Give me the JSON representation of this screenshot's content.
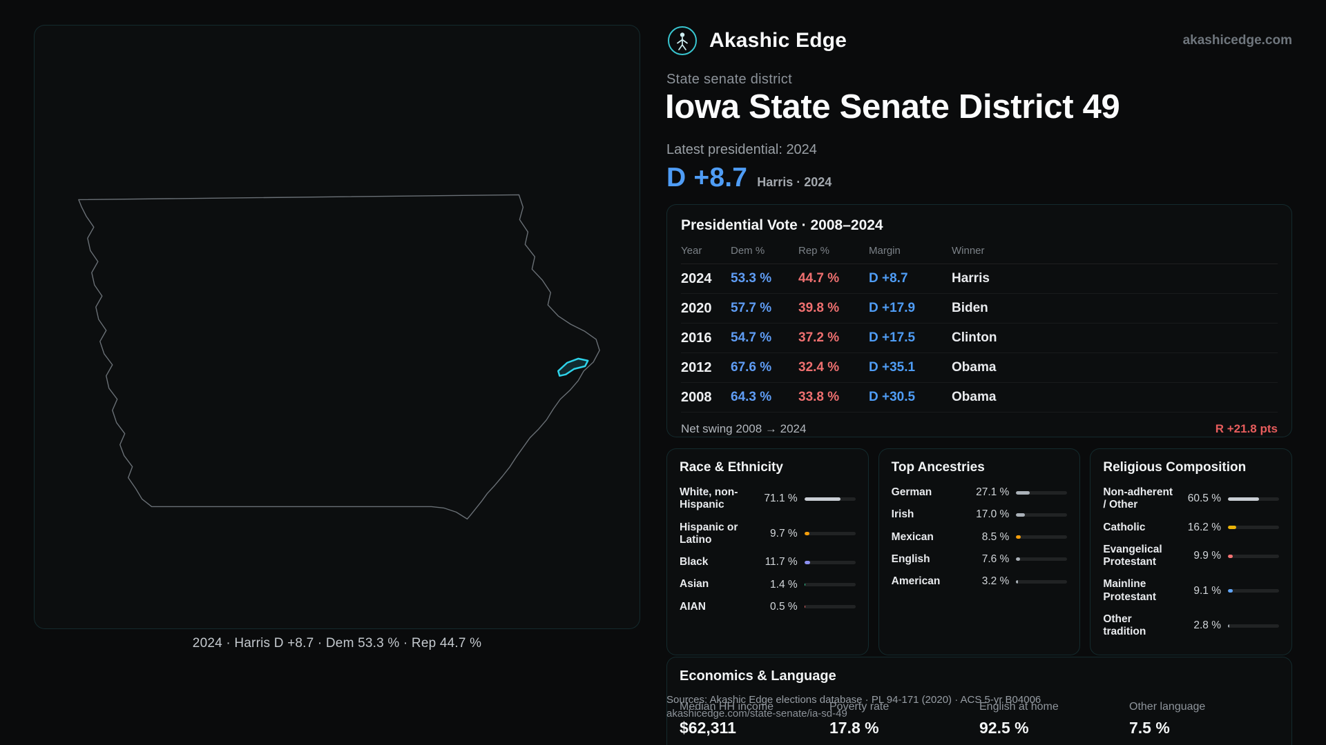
{
  "colors": {
    "dem_blue": "#4f9df6",
    "rep_red": "#ef7070",
    "swing_red": "#e85d5d",
    "accent_teal": "#35c9d6",
    "map_highlight": "#2ed3ea"
  },
  "brand": {
    "name": "Akashic Edge",
    "domain": "akashicedge.com",
    "logo_icon": "akashic-edge-emblem"
  },
  "map": {
    "region": "Iowa",
    "highlight": "District 49",
    "caption": "2024 · Harris D +8.7 · Dem 53.3 % · Rep 44.7 %"
  },
  "hero": {
    "kicker": "State senate district",
    "title": "Iowa State Senate District 49",
    "latest": "Latest presidential: 2024",
    "margin": "D +8.7",
    "margin_note": "Harris · 2024"
  },
  "presidential": {
    "title": "Presidential Vote · 2008–2024",
    "columns": [
      "Year",
      "Dem %",
      "Rep %",
      "Margin",
      "Winner"
    ],
    "rows": [
      {
        "year": "2024",
        "dem": "53.3 %",
        "rep": "44.7 %",
        "margin": "D +8.7",
        "winner": "Harris"
      },
      {
        "year": "2020",
        "dem": "57.7 %",
        "rep": "39.8 %",
        "margin": "D +17.9",
        "winner": "Biden"
      },
      {
        "year": "2016",
        "dem": "54.7 %",
        "rep": "37.2 %",
        "margin": "D +17.5",
        "winner": "Clinton"
      },
      {
        "year": "2012",
        "dem": "67.6 %",
        "rep": "32.4 %",
        "margin": "D +35.1",
        "winner": "Obama"
      },
      {
        "year": "2008",
        "dem": "64.3 %",
        "rep": "33.8 %",
        "margin": "D +30.5",
        "winner": "Obama"
      }
    ],
    "net_swing_label": "Net swing 2008 → 2024",
    "net_swing_value": "R +21.8 pts"
  },
  "race": {
    "title": "Race & Ethnicity",
    "rows": [
      {
        "label": "White, non-Hispanic",
        "value": "71.1 %",
        "pct": 71.1,
        "color": "#c9ced4"
      },
      {
        "label": "Hispanic or Latino",
        "value": "9.7 %",
        "pct": 9.7,
        "color": "#f59e0b"
      },
      {
        "label": "Black",
        "value": "11.7 %",
        "pct": 11.7,
        "color": "#8b8ff0"
      },
      {
        "label": "Asian",
        "value": "1.4 %",
        "pct": 1.4,
        "color": "#34d399"
      },
      {
        "label": "AIAN",
        "value": "0.5 %",
        "pct": 0.5,
        "color": "#ef6a6a"
      }
    ]
  },
  "ancestries": {
    "title": "Top Ancestries",
    "rows": [
      {
        "label": "German",
        "value": "27.1 %",
        "pct": 27.1,
        "color": "#aab1b8"
      },
      {
        "label": "Irish",
        "value": "17.0 %",
        "pct": 17.0,
        "color": "#aab1b8"
      },
      {
        "label": "Mexican",
        "value": "8.5 %",
        "pct": 8.5,
        "color": "#f59e0b"
      },
      {
        "label": "English",
        "value": "7.6 %",
        "pct": 7.6,
        "color": "#aab1b8"
      },
      {
        "label": "American",
        "value": "3.2 %",
        "pct": 3.2,
        "color": "#aab1b8"
      }
    ]
  },
  "religion": {
    "title": "Religious Composition",
    "rows": [
      {
        "label": "Non-adherent / Other",
        "value": "60.5 %",
        "pct": 60.5,
        "color": "#c9ced4"
      },
      {
        "label": "Catholic",
        "value": "16.2 %",
        "pct": 16.2,
        "color": "#eab308"
      },
      {
        "label": "Evangelical Protestant",
        "value": "9.9 %",
        "pct": 9.9,
        "color": "#f47272"
      },
      {
        "label": "Mainline Protestant",
        "value": "9.1 %",
        "pct": 9.1,
        "color": "#60a5fa"
      },
      {
        "label": "Other tradition",
        "value": "2.8 %",
        "pct": 2.8,
        "color": "#aab1b8"
      }
    ]
  },
  "economics": {
    "title": "Economics & Language",
    "stats": [
      {
        "label": "Median HH income",
        "value": "$62,311"
      },
      {
        "label": "Poverty rate",
        "value": "17.8 %"
      },
      {
        "label": "English at home",
        "value": "92.5 %"
      },
      {
        "label": "Other language",
        "value": "7.5 %"
      }
    ]
  },
  "footer": {
    "sources": "Sources: Akashic Edge elections database · PL 94-171 (2020) · ACS 5-yr B04006",
    "permalink": "akashicedge.com/state-senate/ia-sd-49"
  }
}
